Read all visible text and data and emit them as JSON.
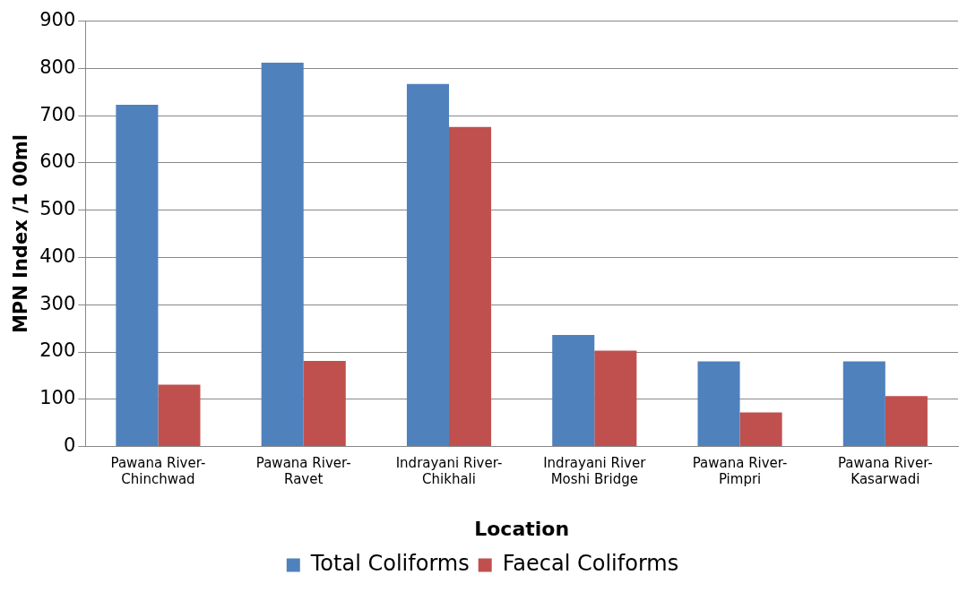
{
  "chart_data": {
    "type": "bar",
    "xlabel": "Location",
    "ylabel": "MPN Index /1 00ml",
    "categories": [
      "Pawana River-Chinchwad",
      "Pawana River-Ravet",
      "Indrayani River-Chikhali",
      "Indrayani River Moshi Bridge",
      "Pawana River-Pimpri",
      "Pawana River-Kasarwadi"
    ],
    "series": [
      {
        "name": "Total Coliforms",
        "color": "#4f81bd",
        "values": [
          723,
          812,
          767,
          236,
          180,
          180
        ]
      },
      {
        "name": "Faecal Coliforms",
        "color": "#c0504d",
        "values": [
          131,
          181,
          676,
          203,
          72,
          107
        ]
      }
    ],
    "ylim": [
      0,
      900
    ],
    "yticks": [
      0,
      100,
      200,
      300,
      400,
      500,
      600,
      700,
      800,
      900
    ],
    "grid": "y",
    "legend": "bottom"
  }
}
